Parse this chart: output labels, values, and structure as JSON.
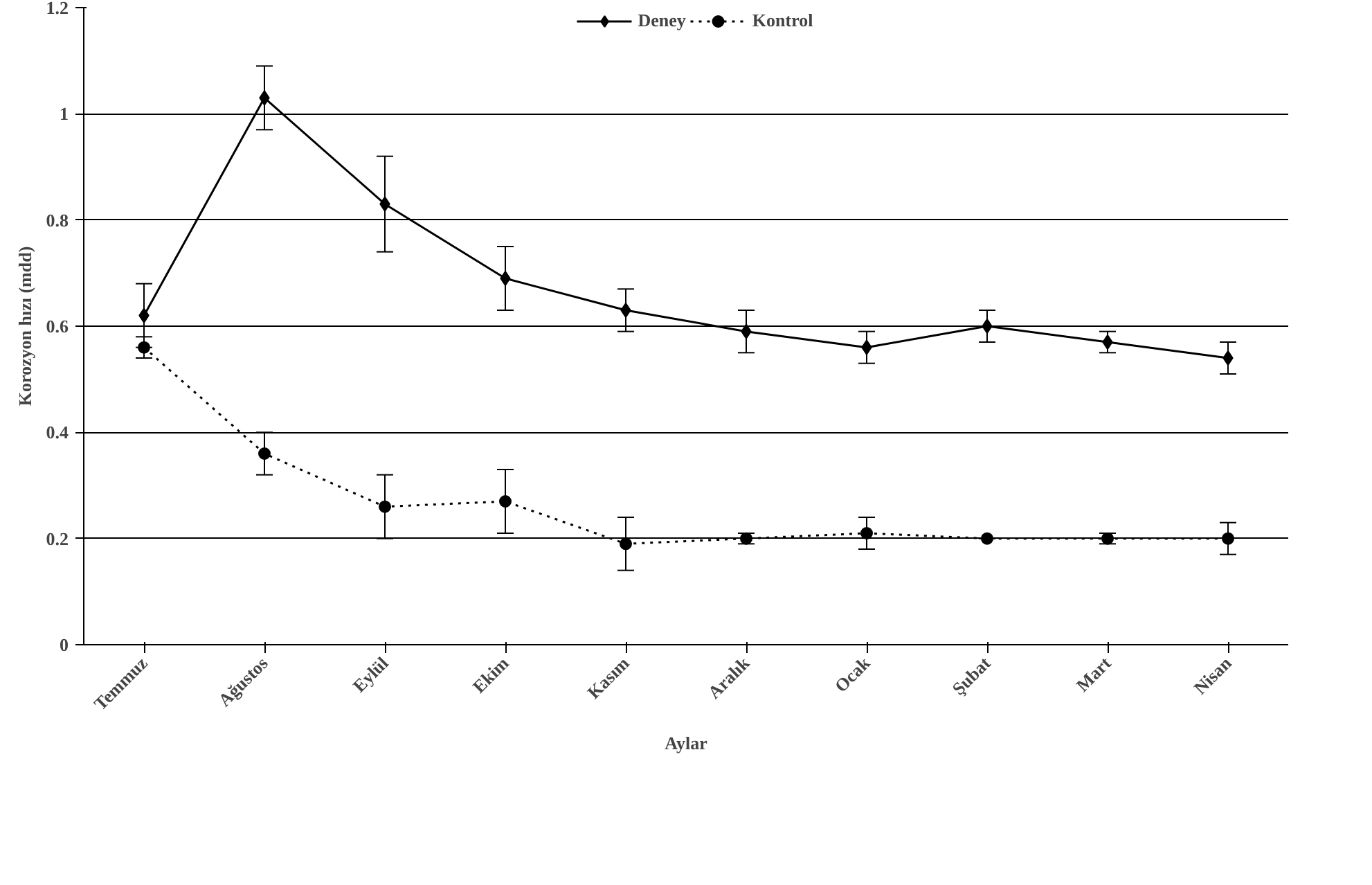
{
  "chart_data": {
    "type": "line",
    "xlabel": "Aylar",
    "ylabel": "Korozyon hızı (mdd)",
    "categories": [
      "Temmuz",
      "Ağustos",
      "Eylül",
      "Ekim",
      "Kasım",
      "Aralık",
      "Ocak",
      "Şubat",
      "Mart",
      "Nisan"
    ],
    "series": [
      {
        "name": "Deney",
        "color": "#000000",
        "marker": "diamond",
        "line_style": "solid",
        "values": [
          0.62,
          1.03,
          0.83,
          0.69,
          0.63,
          0.59,
          0.56,
          0.6,
          0.57,
          0.54
        ],
        "errors": [
          0.06,
          0.06,
          0.09,
          0.06,
          0.04,
          0.04,
          0.03,
          0.03,
          0.02,
          0.03
        ]
      },
      {
        "name": "Kontrol",
        "color": "#000000",
        "marker": "circle",
        "line_style": "dotted",
        "values": [
          0.56,
          0.36,
          0.26,
          0.27,
          0.19,
          0.2,
          0.21,
          0.2,
          0.2,
          0.2
        ],
        "errors": [
          0.02,
          0.04,
          0.06,
          0.06,
          0.05,
          0.01,
          0.03,
          0.0,
          0.01,
          0.03
        ]
      }
    ],
    "ylim": [
      0,
      1.2
    ],
    "yticks": [
      0,
      0.2,
      0.4,
      0.6,
      0.8,
      1,
      1.2
    ],
    "grid": "y",
    "legend": "top"
  }
}
